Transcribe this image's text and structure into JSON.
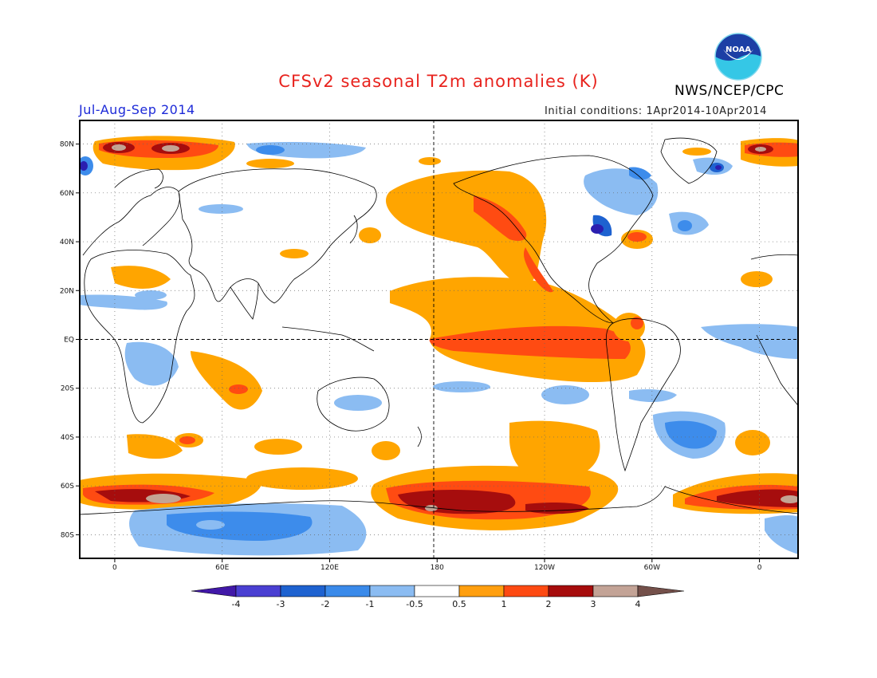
{
  "title": "CFSv2 seasonal T2m anomalies (K)",
  "period": "Jul-Aug-Sep 2014",
  "initial_conditions": "Initial conditions: 1Apr2014-10Apr2014",
  "agency": "NWS/NCEP/CPC",
  "logo": {
    "text": "NOAA",
    "icon": "noaa-logo"
  },
  "map": {
    "projection": "cylindrical equidistant",
    "lon_range": [
      -20,
      382
    ],
    "lat_range": [
      -90,
      90
    ],
    "lat_labels": [
      "80N",
      "60N",
      "40N",
      "20N",
      "EQ",
      "20S",
      "40S",
      "60S",
      "80S"
    ],
    "lat_values": [
      80,
      60,
      40,
      20,
      0,
      -20,
      -40,
      -60,
      -80
    ],
    "lon_labels": [
      "0",
      "60E",
      "120E",
      "180",
      "120W",
      "60W",
      "0"
    ],
    "lon_values": [
      0,
      60,
      120,
      180,
      240,
      300,
      360
    ],
    "reference_lines": [
      "equator",
      "dateline"
    ]
  },
  "colorbar": {
    "labels": [
      "-4",
      "-3",
      "-2",
      "-1",
      "-0.5",
      "0.5",
      "1",
      "2",
      "3",
      "4"
    ],
    "colors": [
      "#4118a8",
      "#4a3fd2",
      "#1e62d0",
      "#3a8aea",
      "#8bbcf2",
      "#ffffff",
      "#ff9f0f",
      "#fd4a12",
      "#a60c0c",
      "#c3a396",
      "#74504a"
    ]
  },
  "colors": {
    "warm_1": "#ffa500",
    "warm_2": "#ff4b12",
    "warm_3": "#a60d0d",
    "warm_4": "#c4a494",
    "cold_1": "#8bbcf2",
    "cold_2": "#3d8ceb",
    "cold_3": "#1e62d0",
    "cold_4": "#2b1fb0"
  }
}
